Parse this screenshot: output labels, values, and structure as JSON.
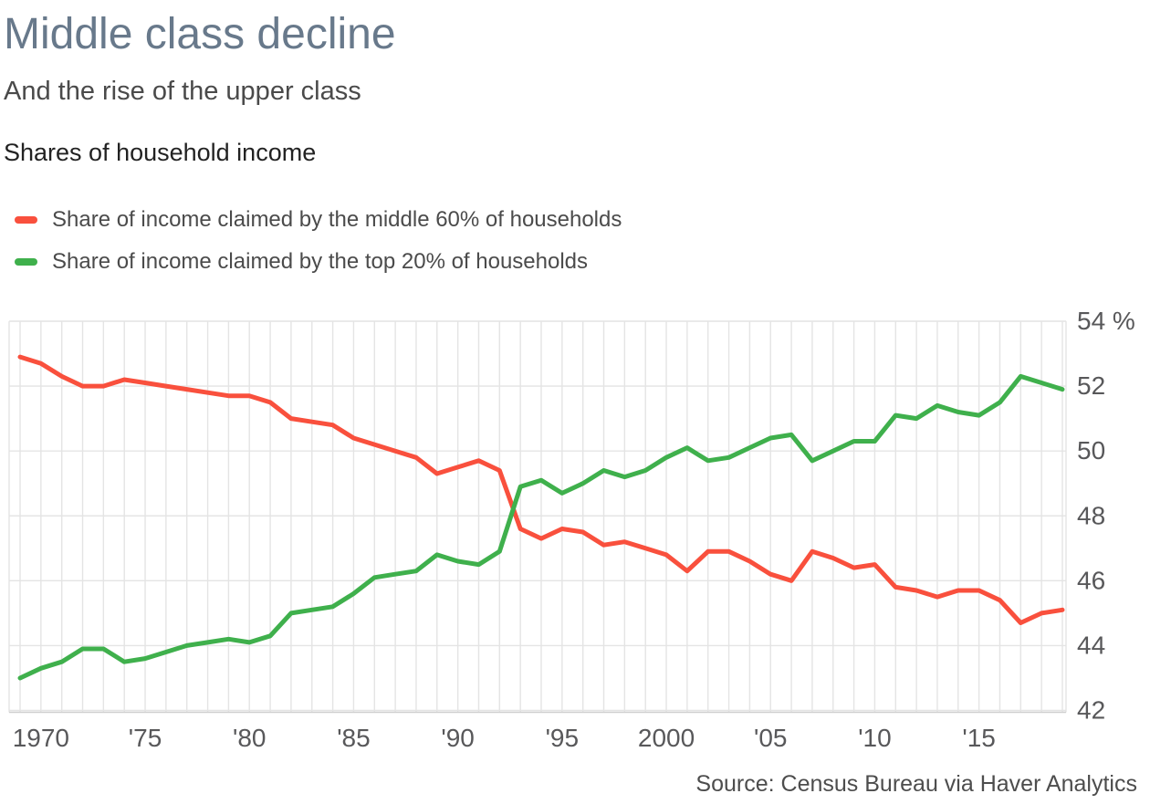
{
  "header": {
    "title": "Middle class decline",
    "subtitle": "And the rise of the upper class",
    "section_label": "Shares of household income"
  },
  "legend": [
    {
      "label": "Share of income claimed by the middle 60% of households",
      "color": "#f9503d"
    },
    {
      "label": "Share of income claimed by the top 20% of households",
      "color": "#3fb04c"
    }
  ],
  "source": "Source: Census Bureau via Haver Analytics",
  "colors": {
    "middle_60_line": "#f9503d",
    "top_20_line": "#3fb04c",
    "gridline": "#e4e4e4",
    "axis_line": "#cfcfcf",
    "tick_label": "#58585a",
    "title": "#68798b"
  },
  "chart_data": {
    "type": "line",
    "title": "Shares of household income",
    "xlabel": "",
    "ylabel": "%",
    "grid": true,
    "legend_position": "top-left",
    "ylim": [
      42,
      54
    ],
    "ytick_step": 2,
    "ytick_labels": [
      "42",
      "44",
      "46",
      "48",
      "50",
      "52",
      "54 %"
    ],
    "xtick_years": [
      1970,
      1975,
      1980,
      1985,
      1990,
      1995,
      2000,
      2005,
      2010,
      2015
    ],
    "xtick_labels": [
      "1970",
      "'75",
      "'80",
      "'85",
      "'90",
      "'95",
      "2000",
      "'05",
      "'10",
      "'15"
    ],
    "x": [
      1969,
      1970,
      1971,
      1972,
      1973,
      1974,
      1975,
      1976,
      1977,
      1978,
      1979,
      1980,
      1981,
      1982,
      1983,
      1984,
      1985,
      1986,
      1987,
      1988,
      1989,
      1990,
      1991,
      1992,
      1993,
      1994,
      1995,
      1996,
      1997,
      1998,
      1999,
      2000,
      2001,
      2002,
      2003,
      2004,
      2005,
      2006,
      2007,
      2008,
      2009,
      2010,
      2011,
      2012,
      2013,
      2014,
      2015,
      2016,
      2017,
      2018,
      2019
    ],
    "series": [
      {
        "name": "Share of income claimed by the middle 60% of households",
        "key": "middle-60",
        "color": "#f9503d",
        "values": [
          52.9,
          52.7,
          52.3,
          52.0,
          52.0,
          52.2,
          52.1,
          52.0,
          51.9,
          51.8,
          51.7,
          51.7,
          51.5,
          51.0,
          50.9,
          50.8,
          50.4,
          50.2,
          50.0,
          49.8,
          49.3,
          49.5,
          49.7,
          49.4,
          47.6,
          47.3,
          47.6,
          47.5,
          47.1,
          47.2,
          47.0,
          46.8,
          46.3,
          46.9,
          46.9,
          46.6,
          46.2,
          46.0,
          46.9,
          46.7,
          46.4,
          46.5,
          45.8,
          45.7,
          45.5,
          45.7,
          45.7,
          45.4,
          44.7,
          45.0,
          45.1
        ]
      },
      {
        "name": "Share of income claimed by the top 20% of households",
        "key": "top-20",
        "color": "#3fb04c",
        "values": [
          43.0,
          43.3,
          43.5,
          43.9,
          43.9,
          43.5,
          43.6,
          43.8,
          44.0,
          44.1,
          44.2,
          44.1,
          44.3,
          45.0,
          45.1,
          45.2,
          45.6,
          46.1,
          46.2,
          46.3,
          46.8,
          46.6,
          46.5,
          46.9,
          48.9,
          49.1,
          48.7,
          49.0,
          49.4,
          49.2,
          49.4,
          49.8,
          50.1,
          49.7,
          49.8,
          50.1,
          50.4,
          50.5,
          49.7,
          50.0,
          50.3,
          50.3,
          51.1,
          51.0,
          51.4,
          51.2,
          51.1,
          51.5,
          52.3,
          52.1,
          51.9
        ]
      }
    ]
  }
}
